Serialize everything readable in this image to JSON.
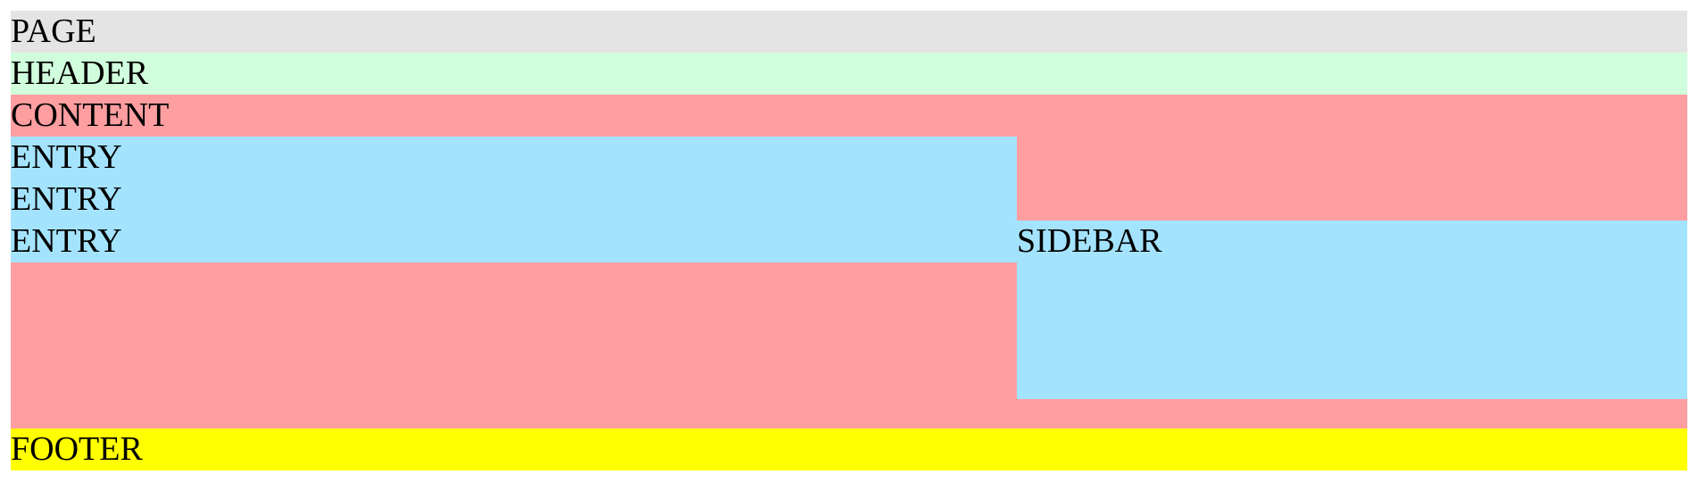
{
  "page": {
    "label": "PAGE"
  },
  "header": {
    "label": "HEADER"
  },
  "content": {
    "label": "CONTENT",
    "entries": [
      {
        "label": "ENTRY"
      },
      {
        "label": "ENTRY"
      },
      {
        "label": "ENTRY"
      }
    ],
    "sidebar": {
      "label": "SIDEBAR"
    }
  },
  "footer": {
    "label": "FOOTER"
  },
  "colors": {
    "page": "#e4e4e4",
    "header": "#d0fedc",
    "content": "#ff9ea1",
    "entry": "#a4e3fd",
    "sidebar": "#a4e3fd",
    "footer": "#ffff00"
  }
}
